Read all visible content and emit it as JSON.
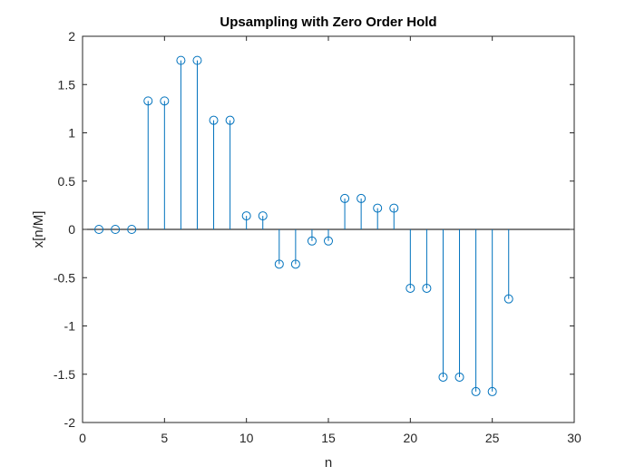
{
  "chart_data": {
    "type": "stem",
    "title": "Upsampling with Zero Order Hold",
    "xlabel": "n",
    "ylabel": "x[n/M]",
    "xlim": [
      0,
      30
    ],
    "ylim": [
      -2,
      2
    ],
    "xticks": [
      0,
      5,
      10,
      15,
      20,
      25,
      30
    ],
    "yticks": [
      -2,
      -1.5,
      -1,
      -0.5,
      0,
      0.5,
      1,
      1.5,
      2
    ],
    "grid": false,
    "baseline": 0,
    "colors": {
      "stem": "#0072BD",
      "axes": "#262626",
      "baseline": "#000000"
    },
    "x": [
      1,
      2,
      3,
      4,
      5,
      6,
      7,
      8,
      9,
      10,
      11,
      12,
      13,
      14,
      15,
      16,
      17,
      18,
      19,
      20,
      21,
      22,
      23,
      24,
      25,
      26
    ],
    "y": [
      0,
      0,
      0,
      1.33,
      1.33,
      1.75,
      1.75,
      1.13,
      1.13,
      0.14,
      0.14,
      -0.36,
      -0.36,
      -0.12,
      -0.12,
      0.32,
      0.32,
      0.22,
      0.22,
      -0.61,
      -0.61,
      -1.53,
      -1.53,
      -1.68,
      -1.68,
      -0.72
    ]
  }
}
